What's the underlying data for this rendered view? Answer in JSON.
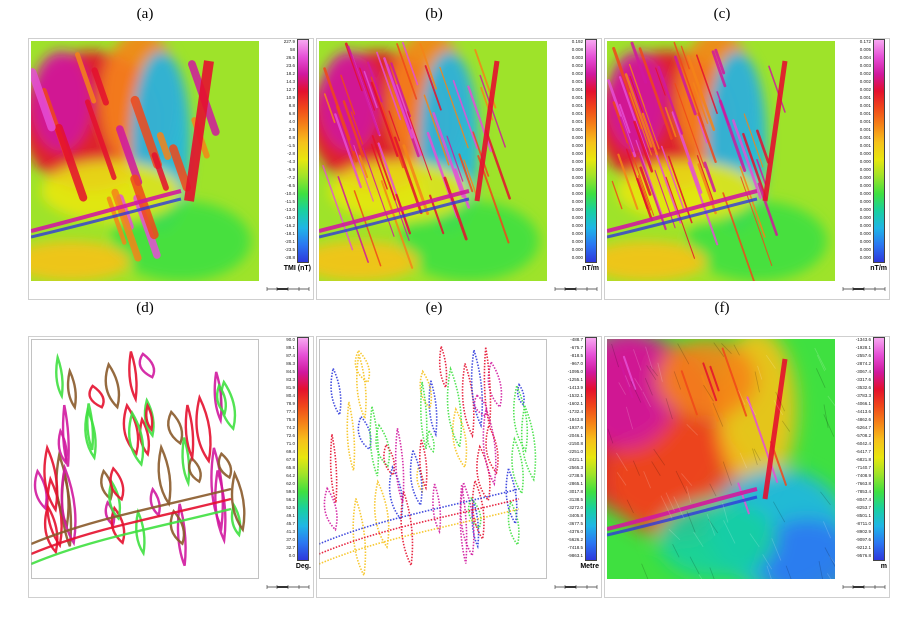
{
  "panels": [
    {
      "label": "(a)",
      "unit": "TMI (nT)",
      "style": "color",
      "ticks": [
        "227.9",
        "58",
        "26.5",
        "23.6",
        "18.2",
        "14.3",
        "12.7",
        "10.9",
        "8.8",
        "6.8",
        "4.0",
        "2.5",
        "0.8",
        "-1.5",
        "-2.8",
        "-4.3",
        "-5.9",
        "-7.2",
        "-8.5",
        "-10.4",
        "-11.5",
        "-13.0",
        "-15.0",
        "-16.2",
        "-18.1",
        "-20.1",
        "-23.5",
        "-28.8"
      ],
      "colors": [
        "#f7a8f0",
        "#e64fd6",
        "#d0189e",
        "#e4102e",
        "#f0481a",
        "#f58418",
        "#f6c21b",
        "#e8e70f",
        "#9ee32a",
        "#3fe040",
        "#19d0a0",
        "#1fb6e6",
        "#2b77f2",
        "#2e38dc"
      ]
    },
    {
      "label": "(b)",
      "unit": "nT/m",
      "style": "color",
      "ticks": [
        "0.192",
        "0.008",
        "0.003",
        "0.002",
        "0.002",
        "0.001",
        "0.001",
        "0.001",
        "0.001",
        "0.001",
        "0.001",
        "0.001",
        "0.000",
        "0.000",
        "0.000",
        "0.000",
        "0.000",
        "0.000",
        "0.000",
        "0.000",
        "0.000",
        "0.000",
        "0.000",
        "0.000",
        "0.000",
        "0.000",
        "0.000",
        "0.000"
      ],
      "colors": [
        "#f7a8f0",
        "#e64fd6",
        "#d0189e",
        "#e4102e",
        "#f0481a",
        "#f58418",
        "#f6c21b",
        "#e8e70f",
        "#9ee32a",
        "#3fe040",
        "#19d0a0",
        "#1fb6e6",
        "#2b77f2",
        "#2e38dc"
      ]
    },
    {
      "label": "(c)",
      "unit": "nT/m",
      "style": "color",
      "ticks": [
        "0.172",
        "0.005",
        "0.004",
        "0.003",
        "0.002",
        "0.002",
        "0.002",
        "0.001",
        "0.001",
        "0.001",
        "0.001",
        "0.001",
        "0.001",
        "0.001",
        "0.000",
        "0.000",
        "0.000",
        "0.000",
        "0.000",
        "0.000",
        "0.000",
        "0.000",
        "0.000",
        "0.000",
        "0.000",
        "0.000",
        "0.000",
        "0.000"
      ],
      "colors": [
        "#f7a8f0",
        "#e64fd6",
        "#d0189e",
        "#e4102e",
        "#f0481a",
        "#f58418",
        "#f6c21b",
        "#e8e70f",
        "#9ee32a",
        "#3fe040",
        "#19d0a0",
        "#1fb6e6",
        "#2b77f2",
        "#2e38dc"
      ]
    },
    {
      "label": "(d)",
      "unit": "Deg.",
      "style": "contour",
      "ticks": [
        "90.0",
        "89.1",
        "87.4",
        "86.3",
        "84.5",
        "83.3",
        "81.9",
        "80.4",
        "78.9",
        "77.4",
        "75.8",
        "74.2",
        "72.6",
        "71.0",
        "69.4",
        "67.8",
        "65.8",
        "64.2",
        "62.0",
        "59.5",
        "56.2",
        "52.5",
        "49.1",
        "45.7",
        "41.3",
        "37.0",
        "32.7",
        "0.0"
      ],
      "colors": [
        "#f7a8f0",
        "#e64fd6",
        "#d0189e",
        "#e4102e",
        "#f0481a",
        "#f58418",
        "#f6c21b",
        "#e8e70f",
        "#9ee32a",
        "#3fe040",
        "#19d0a0",
        "#1fb6e6",
        "#2b77f2",
        "#2e38dc"
      ]
    },
    {
      "label": "(e)",
      "unit": "Metre",
      "style": "dots",
      "ticks": [
        "-488.7",
        "-675.7",
        "-818.5",
        "-967.0",
        "-1095.0",
        "-1255.1",
        "-1413.9",
        "-1532.1",
        "-1602.1",
        "-1732.4",
        "-1843.8",
        "-1937.6",
        "-2046.1",
        "-2150.8",
        "-2251.0",
        "-2421.1",
        "-2565.3",
        "-2738.5",
        "-2865.1",
        "-3017.8",
        "-3138.5",
        "-3272.0",
        "-3405.8",
        "-3677.5",
        "-4376.0",
        "-5626.2",
        "-7418.5",
        "-9863.1"
      ],
      "colors": [
        "#f7a8f0",
        "#e64fd6",
        "#d0189e",
        "#e4102e",
        "#f0481a",
        "#f58418",
        "#f6c21b",
        "#e8e70f",
        "#9ee32a",
        "#3fe040",
        "#19d0a0",
        "#1fb6e6",
        "#2b77f2",
        "#2e38dc"
      ]
    },
    {
      "label": "(f)",
      "unit": "m",
      "style": "shaded",
      "ticks": [
        "-1343.6",
        "-1928.1",
        "-2557.6",
        "-2874.2",
        "-3067.4",
        "-3317.6",
        "-3532.6",
        "-3783.3",
        "-4066.1",
        "-4413.6",
        "-4862.6",
        "-5264.7",
        "-5708.2",
        "-6042.4",
        "-6417.7",
        "-6821.8",
        "-7140.7",
        "-7408.9",
        "-7663.8",
        "-7853.4",
        "-8047.4",
        "-8253.7",
        "-8501.1",
        "-8711.0",
        "-8902.9",
        "-9097.6",
        "-9212.1",
        "-9576.8"
      ],
      "colors": [
        "#f7a8f0",
        "#e64fd6",
        "#d0189e",
        "#e4102e",
        "#f0481a",
        "#f58418",
        "#f6c21b",
        "#e8e70f",
        "#9ee32a",
        "#3fe040",
        "#19d0a0",
        "#1fb6e6",
        "#2b77f2",
        "#2e38dc"
      ]
    }
  ]
}
